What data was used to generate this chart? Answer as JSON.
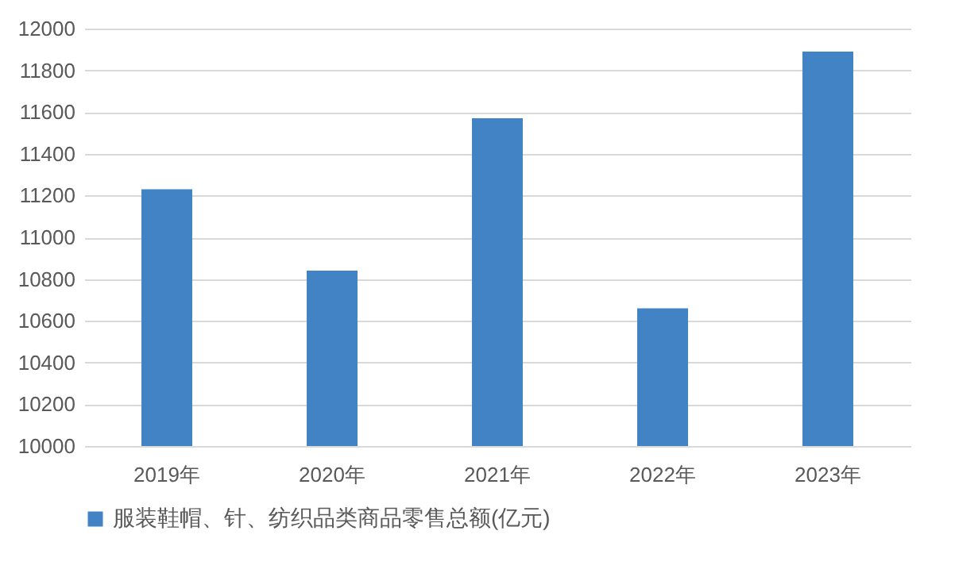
{
  "chart_data": {
    "type": "bar",
    "categories": [
      "2019年",
      "2020年",
      "2021年",
      "2022年",
      "2023年"
    ],
    "series": [
      {
        "name": "服装鞋帽、针、纺织品类商品零售总额(亿元)",
        "color": "#4183c4",
        "values": [
          11230,
          10840,
          11570,
          10660,
          11890
        ]
      }
    ],
    "ylim": [
      10000,
      12000
    ],
    "yticks": [
      10000,
      10200,
      10400,
      10600,
      10800,
      11000,
      11200,
      11400,
      11600,
      11800,
      12000
    ],
    "grid": "y",
    "legend": "bottom"
  }
}
